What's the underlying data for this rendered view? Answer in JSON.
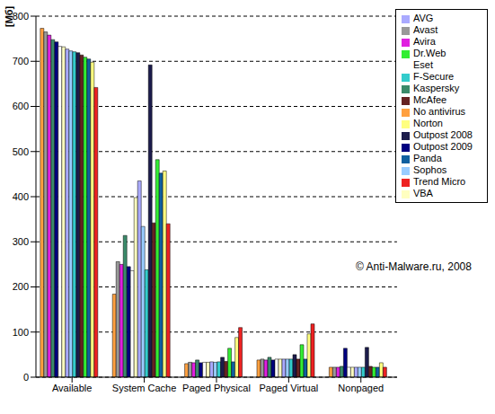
{
  "chart_data": {
    "type": "bar",
    "y_label": "[Мб]",
    "annotation": "© Anti-Malware.ru, 2008",
    "categories": [
      "Available",
      "System Cache",
      "Paged Physical",
      "Paged Virtual",
      "Nonpaged"
    ],
    "series": [
      {
        "name": "No antivirus",
        "color": "#ffa040",
        "values": [
          773,
          184,
          30,
          38,
          22
        ]
      },
      {
        "name": "Avast",
        "color": "#999999",
        "values": [
          765,
          256,
          33,
          40,
          22
        ]
      },
      {
        "name": "Avira",
        "color": "#e020e0",
        "values": [
          758,
          250,
          32,
          38,
          22
        ]
      },
      {
        "name": "Kaspersky",
        "color": "#3a8a6a",
        "values": [
          748,
          314,
          38,
          44,
          24
        ]
      },
      {
        "name": "Outpost 2009",
        "color": "#000080",
        "values": [
          743,
          245,
          32,
          38,
          64
        ]
      },
      {
        "name": "Eset",
        "color": "#ffffff",
        "values": [
          733,
          236,
          33,
          40,
          22
        ]
      },
      {
        "name": "VBA",
        "color": "#ffffc0",
        "values": [
          732,
          398,
          33,
          40,
          22
        ]
      },
      {
        "name": "AVG",
        "color": "#aaaaff",
        "values": [
          727,
          435,
          34,
          40,
          22
        ]
      },
      {
        "name": "Sophos",
        "color": "#99ccff",
        "values": [
          723,
          334,
          33,
          40,
          22
        ]
      },
      {
        "name": "F-Secure",
        "color": "#33cccc",
        "values": [
          721,
          238,
          34,
          40,
          22
        ]
      },
      {
        "name": "Outpost 2008",
        "color": "#1c1c4c",
        "values": [
          719,
          692,
          44,
          50,
          66
        ]
      },
      {
        "name": "McAfee",
        "color": "#662222",
        "values": [
          714,
          342,
          35,
          40,
          24
        ]
      },
      {
        "name": "Dr.Web",
        "color": "#33ee33",
        "values": [
          709,
          482,
          64,
          72,
          22
        ]
      },
      {
        "name": "Panda",
        "color": "#1060a0",
        "values": [
          705,
          452,
          34,
          40,
          22
        ]
      },
      {
        "name": "Norton",
        "color": "#ffff80",
        "values": [
          698,
          457,
          88,
          96,
          32
        ]
      },
      {
        "name": "Trend Micro",
        "color": "#ee2222",
        "values": [
          642,
          340,
          110,
          118,
          22
        ]
      }
    ],
    "ylim": [
      0,
      800
    ],
    "yticks": [
      0,
      100,
      200,
      300,
      400,
      500,
      600,
      700,
      800
    ],
    "grid": true,
    "legend": "upper right"
  }
}
